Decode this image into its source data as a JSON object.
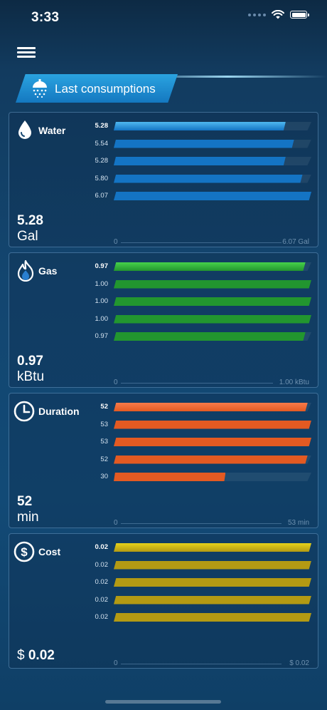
{
  "status_bar": {
    "time": "3:33"
  },
  "tab": {
    "label": "Last consumptions",
    "icon": "shower-icon"
  },
  "cards": [
    {
      "key": "water",
      "title": "Water",
      "icon": "water-drop-icon",
      "value": "5.28",
      "unit": "Gal",
      "axis_min": "0",
      "axis_max": "6.07 Gal",
      "max": 6.07,
      "color_top": "#4fb8f0",
      "color": "#1474c4",
      "rows": [
        {
          "label": "5.28",
          "value": 5.28
        },
        {
          "label": "5.54",
          "value": 5.54
        },
        {
          "label": "5.28",
          "value": 5.28
        },
        {
          "label": "5.80",
          "value": 5.8
        },
        {
          "label": "6.07",
          "value": 6.07
        }
      ]
    },
    {
      "key": "gas",
      "title": "Gas",
      "icon": "gas-flame-icon",
      "value": "0.97",
      "unit": "kBtu",
      "axis_min": "0",
      "axis_max": "1.00 kBtu",
      "max": 1.0,
      "color_top": "#46d24a",
      "color": "#22962f",
      "rows": [
        {
          "label": "0.97",
          "value": 0.97
        },
        {
          "label": "1.00",
          "value": 1.0
        },
        {
          "label": "1.00",
          "value": 1.0
        },
        {
          "label": "1.00",
          "value": 1.0
        },
        {
          "label": "0.97",
          "value": 0.97
        }
      ]
    },
    {
      "key": "duration",
      "title": "Duration",
      "icon": "clock-icon",
      "value": "52",
      "unit": "min",
      "axis_min": "0",
      "axis_max": "53 min",
      "max": 53,
      "color_top": "#f77a4a",
      "color": "#e35a22",
      "rows": [
        {
          "label": "52",
          "value": 52
        },
        {
          "label": "53",
          "value": 53
        },
        {
          "label": "53",
          "value": 53
        },
        {
          "label": "52",
          "value": 52
        },
        {
          "label": "30",
          "value": 30
        }
      ]
    },
    {
      "key": "cost",
      "title": "Cost",
      "icon": "dollar-icon",
      "value_prefix": "$ ",
      "value": "0.02",
      "unit": "",
      "axis_min": "0",
      "axis_max": "$ 0.02",
      "max": 0.02,
      "color_top": "#e6d21a",
      "color": "#b39a13",
      "rows": [
        {
          "label": "0.02",
          "value": 0.02
        },
        {
          "label": "0.02",
          "value": 0.02
        },
        {
          "label": "0.02",
          "value": 0.02
        },
        {
          "label": "0.02",
          "value": 0.02
        },
        {
          "label": "0.02",
          "value": 0.02
        }
      ]
    }
  ]
}
